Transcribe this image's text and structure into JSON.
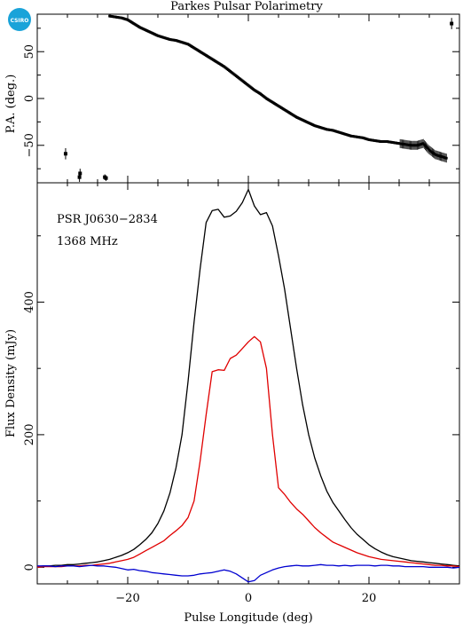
{
  "logo": {
    "text": "CSIRO",
    "color": "#1aa3d9"
  },
  "colors": {
    "total": "#000000",
    "linear": "#e00000",
    "circular": "#0000d0",
    "axes": "#000000"
  },
  "chart_data": [
    {
      "type": "scatter",
      "title": "Parkes Pulsar Polarimetry",
      "xlabel": "",
      "ylabel": "P.A. (deg.)",
      "xlim": [
        -35,
        35
      ],
      "ylim": [
        -90,
        90
      ],
      "yticks": [
        -50,
        0,
        50
      ],
      "yticklabels": [
        "−50",
        "0",
        "50"
      ],
      "series": [
        {
          "error_bars": true,
          "x": [
            -30.3,
            -28.0,
            -27.9,
            -23.8,
            -23.6,
            33.7
          ],
          "y": [
            -59,
            -84,
            -80,
            -84,
            -85,
            80
          ],
          "err": [
            6,
            5,
            5,
            3,
            3,
            6
          ]
        },
        {
          "x": [
            -23.0,
            -22.0,
            -21.0,
            -20.0,
            -19.0,
            -18.0,
            -17.0,
            -16.0,
            -15.0,
            -14.0,
            -13.0,
            -12.0,
            -11.0,
            -10.0,
            -9.0,
            -8.0,
            -7.0,
            -6.0,
            -5.0,
            -4.0,
            -3.0,
            -2.0,
            -1.0,
            0.0,
            1.0,
            2.0,
            3.0,
            4.0,
            5.0,
            6.0,
            7.0,
            8.0,
            9.0,
            10.0,
            11.0,
            12.0,
            13.0,
            14.0,
            15.0,
            16.0,
            17.0,
            18.0,
            19.0,
            20.0,
            21.0,
            22.0,
            23.0,
            24.0,
            25.0,
            26.0,
            27.0,
            28.0,
            29.0,
            30.0,
            31.0,
            32.0,
            33.0
          ],
          "y": [
            88,
            87,
            86,
            84,
            80,
            76,
            73,
            70,
            67,
            65,
            63,
            62,
            60,
            58,
            54,
            50,
            46,
            42,
            38,
            34,
            29,
            24,
            19,
            14,
            9,
            5,
            0,
            -4,
            -8,
            -12,
            -16,
            -20,
            -23,
            -26,
            -29,
            -31,
            -33,
            -34,
            -36,
            -38,
            -40,
            -41,
            -42,
            -44,
            -45,
            -46,
            -46,
            -47,
            -48,
            -49,
            -50,
            -50,
            -48,
            -55,
            -60,
            -62,
            -64
          ]
        }
      ]
    },
    {
      "type": "line",
      "title": "",
      "xlabel": "Pulse Longitude (deg)",
      "ylabel": "Flux Density (mJy)",
      "xlim": [
        -35,
        35
      ],
      "ylim": [
        -25,
        580
      ],
      "xticks": [
        -20,
        0,
        20
      ],
      "xticklabels": [
        "−20",
        "0",
        "20"
      ],
      "yticks": [
        0,
        200,
        400
      ],
      "yticklabels": [
        "0",
        "200",
        "400"
      ],
      "annotations": [
        "PSR J0630−2834",
        "1368 MHz"
      ],
      "x": [
        -35,
        -34,
        -33,
        -32,
        -31,
        -30,
        -29,
        -28,
        -27,
        -26,
        -25,
        -24,
        -23,
        -22,
        -21,
        -20,
        -19,
        -18,
        -17,
        -16,
        -15,
        -14,
        -13,
        -12,
        -11,
        -10,
        -9,
        -8,
        -7,
        -6,
        -5,
        -4,
        -3,
        -2,
        -1,
        0,
        1,
        2,
        3,
        4,
        5,
        6,
        7,
        8,
        9,
        10,
        11,
        12,
        13,
        14,
        15,
        16,
        17,
        18,
        19,
        20,
        21,
        22,
        23,
        24,
        25,
        26,
        27,
        28,
        29,
        30,
        31,
        32,
        33,
        34,
        35
      ],
      "series": [
        {
          "name": "total",
          "values": [
            1,
            2,
            2,
            3,
            3,
            4,
            4,
            5,
            6,
            7,
            8,
            10,
            12,
            15,
            18,
            22,
            27,
            34,
            42,
            52,
            66,
            85,
            112,
            150,
            200,
            280,
            370,
            450,
            520,
            538,
            540,
            528,
            530,
            537,
            550,
            570,
            545,
            532,
            535,
            515,
            470,
            420,
            360,
            300,
            245,
            200,
            165,
            138,
            115,
            98,
            85,
            72,
            60,
            50,
            42,
            34,
            28,
            23,
            19,
            16,
            14,
            12,
            10,
            9,
            8,
            7,
            6,
            5,
            4,
            3,
            2
          ]
        },
        {
          "name": "linear",
          "values": [
            0,
            1,
            1,
            1,
            1,
            2,
            2,
            2,
            3,
            3,
            4,
            5,
            6,
            8,
            10,
            12,
            15,
            20,
            25,
            30,
            35,
            40,
            48,
            55,
            63,
            75,
            100,
            160,
            230,
            295,
            298,
            297,
            315,
            320,
            330,
            340,
            348,
            340,
            300,
            200,
            120,
            110,
            98,
            88,
            80,
            70,
            60,
            52,
            45,
            38,
            34,
            30,
            26,
            22,
            19,
            16,
            14,
            12,
            11,
            10,
            9,
            8,
            7,
            6,
            5,
            4,
            3,
            3,
            2,
            2,
            1
          ]
        },
        {
          "name": "circular",
          "values": [
            2,
            2,
            2,
            1,
            2,
            2,
            2,
            1,
            2,
            3,
            2,
            2,
            1,
            0,
            -2,
            -4,
            -3,
            -5,
            -6,
            -8,
            -9,
            -10,
            -11,
            -12,
            -13,
            -13,
            -12,
            -10,
            -9,
            -8,
            -6,
            -4,
            -6,
            -10,
            -16,
            -22,
            -20,
            -12,
            -8,
            -4,
            -1,
            1,
            2,
            3,
            2,
            2,
            3,
            4,
            3,
            3,
            2,
            3,
            2,
            3,
            3,
            3,
            2,
            3,
            3,
            2,
            2,
            1,
            1,
            1,
            1,
            0,
            0,
            0,
            0,
            -1,
            0
          ]
        }
      ]
    }
  ]
}
